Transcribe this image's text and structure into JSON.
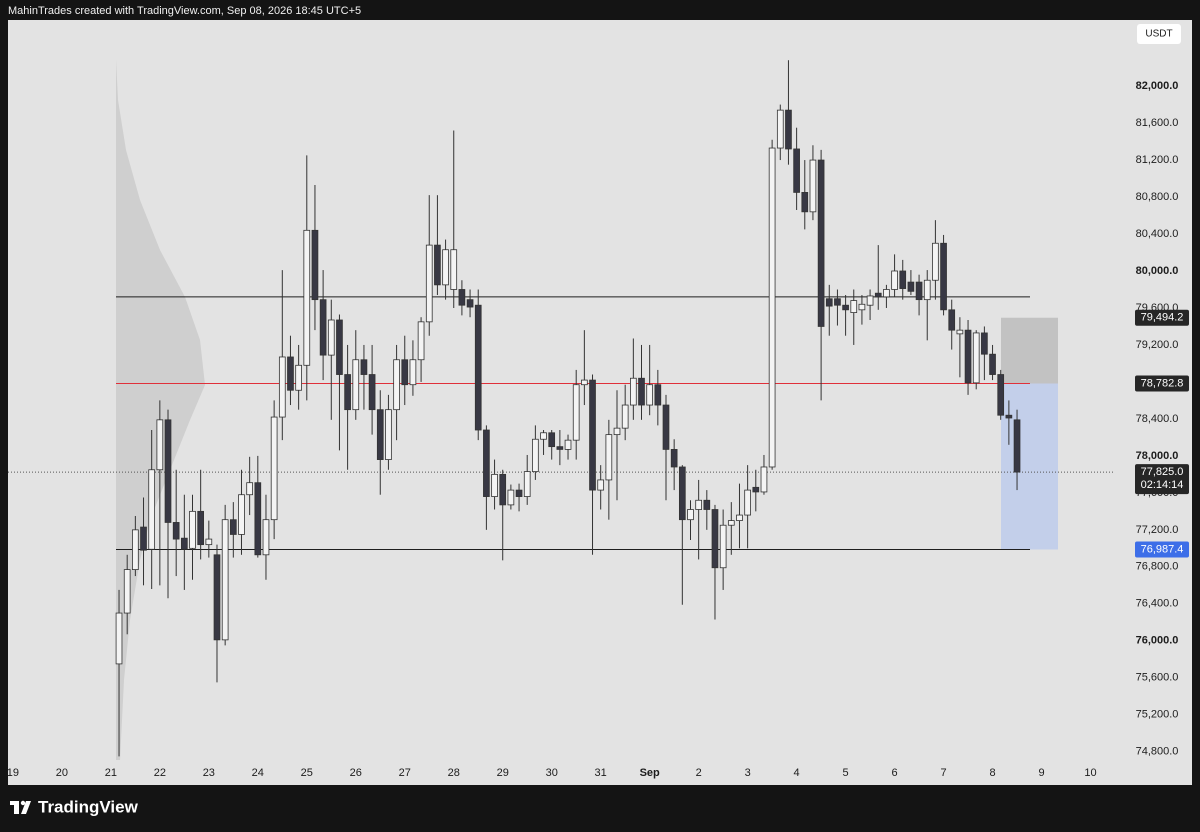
{
  "header": {
    "text": "MahinTrades created with TradingView.com, Sep 08, 2026 18:45 UTC+5"
  },
  "footer": {
    "brand": "TradingView"
  },
  "chart_data": {
    "type": "candlestick",
    "currency": "USDT",
    "up_color": "#f4f4f4",
    "down_color": "#383844",
    "wick_color": "#333333",
    "open": [
      75750,
      76300,
      76770,
      77230,
      76990,
      77850,
      78390,
      77280,
      77110,
      77000,
      77400,
      77040,
      76930,
      76010,
      77310,
      77150,
      77580,
      77710,
      76930,
      77310,
      78420,
      79070,
      78710,
      78980,
      80440,
      79690,
      79090,
      79470,
      78880,
      78500,
      79040,
      78880,
      78500,
      77960,
      78500,
      79040,
      78770,
      79040,
      79450,
      80280,
      79850,
      79800,
      79800,
      79690,
      79630,
      78280,
      77560,
      77800,
      77470,
      77630,
      77560,
      77830,
      78180,
      78250,
      78100,
      78070,
      78170,
      78770,
      78820,
      77630,
      77740,
      78230,
      78300,
      78550,
      78840,
      78550,
      78770,
      78550,
      78070,
      77880,
      77310,
      77420,
      77520,
      77420,
      76790,
      77250,
      77300,
      77360,
      77660,
      77610,
      77880,
      81330,
      81740,
      81320,
      80850,
      80640,
      81200,
      79700,
      79700,
      79630,
      79550,
      79580,
      79630,
      79760,
      79720,
      79800,
      80000,
      79880,
      79880,
      79690,
      79900,
      80300,
      79580,
      79320,
      79360,
      78790,
      79330,
      79100,
      78880,
      78440,
      78390
    ],
    "high": [
      76550,
      76930,
      77350,
      77550,
      78280,
      78600,
      78500,
      77850,
      77580,
      77580,
      77850,
      77300,
      77040,
      77470,
      77500,
      77850,
      77990,
      78000,
      77580,
      78600,
      80010,
      79300,
      79200,
      81250,
      80930,
      80010,
      79690,
      79530,
      79200,
      79360,
      79200,
      79200,
      78710,
      78660,
      79200,
      79300,
      79250,
      79500,
      80820,
      80820,
      80340,
      81520,
      79900,
      79800,
      79800,
      78330,
      77960,
      77850,
      77690,
      77700,
      78010,
      78330,
      78280,
      78280,
      78280,
      78230,
      78930,
      79360,
      78880,
      77900,
      78390,
      78710,
      78770,
      79270,
      79200,
      79200,
      78930,
      78660,
      78180,
      77900,
      77520,
      77740,
      77630,
      77470,
      77420,
      77500,
      77700,
      77900,
      77850,
      78010,
      81420,
      81800,
      82280,
      81550,
      81200,
      81360,
      81310,
      79850,
      79800,
      79740,
      79800,
      79740,
      79800,
      80280,
      79850,
      80180,
      80120,
      80010,
      79960,
      80010,
      80550,
      80390,
      79690,
      79500,
      79470,
      79360,
      79400,
      79200,
      78930,
      78600,
      78500
    ],
    "low": [
      74750,
      76070,
      76700,
      76600,
      76560,
      76600,
      76460,
      76700,
      76550,
      76660,
      76880,
      76900,
      75550,
      75950,
      76900,
      76930,
      77360,
      76900,
      76660,
      77100,
      78170,
      78550,
      78500,
      78600,
      79360,
      78820,
      78390,
      78060,
      77850,
      78390,
      78500,
      78230,
      77580,
      77850,
      78170,
      78550,
      78650,
      78800,
      79300,
      79740,
      79690,
      79600,
      79520,
      79500,
      78170,
      77200,
      77420,
      76870,
      77420,
      77400,
      77470,
      77740,
      78010,
      77960,
      77900,
      77960,
      77960,
      78550,
      76930,
      77420,
      77310,
      77520,
      78170,
      78390,
      78390,
      78440,
      78330,
      77520,
      77630,
      76390,
      77090,
      76880,
      77200,
      76230,
      76550,
      76930,
      77000,
      77000,
      77400,
      77580,
      77850,
      81200,
      81150,
      80660,
      80450,
      80550,
      78600,
      79300,
      79410,
      79300,
      79200,
      79420,
      79470,
      79580,
      79600,
      79720,
      79690,
      79740,
      79520,
      79250,
      79690,
      79520,
      79150,
      78850,
      78660,
      78720,
      78820,
      78820,
      78390,
      78120,
      77630
    ],
    "close": [
      76300,
      76770,
      77200,
      76980,
      77850,
      78390,
      77280,
      77100,
      76990,
      77400,
      77040,
      77100,
      76010,
      77310,
      77150,
      77580,
      77710,
      76930,
      77310,
      78420,
      79070,
      78710,
      78980,
      80440,
      79690,
      79090,
      79470,
      78880,
      78500,
      79040,
      78880,
      78500,
      77960,
      78500,
      79040,
      78770,
      79040,
      79450,
      80280,
      79850,
      80230,
      80230,
      79630,
      79610,
      78280,
      77560,
      77800,
      77470,
      77630,
      77560,
      77830,
      78180,
      78250,
      78100,
      78070,
      78170,
      78770,
      78820,
      77630,
      77740,
      78230,
      78300,
      78550,
      78840,
      78550,
      78770,
      78550,
      78070,
      77880,
      77310,
      77420,
      77520,
      77420,
      76790,
      77250,
      77300,
      77360,
      77630,
      77610,
      77880,
      81330,
      81740,
      81320,
      80850,
      80640,
      81200,
      79400,
      79620,
      79630,
      79580,
      79680,
      79640,
      79730,
      79720,
      79800,
      80000,
      79810,
      79780,
      79690,
      79900,
      80300,
      79580,
      79360,
      79360,
      78790,
      79330,
      79100,
      78880,
      78440,
      78410,
      77825
    ],
    "xlim": [
      -13.6,
      122
    ],
    "xticks": [
      {
        "value": -13,
        "label": "19"
      },
      {
        "value": -7,
        "label": "20"
      },
      {
        "value": -1,
        "label": "21"
      },
      {
        "value": 5,
        "label": "22"
      },
      {
        "value": 11,
        "label": "23"
      },
      {
        "value": 17,
        "label": "24"
      },
      {
        "value": 23,
        "label": "25"
      },
      {
        "value": 29,
        "label": "26"
      },
      {
        "value": 35,
        "label": "27"
      },
      {
        "value": 41,
        "label": "28"
      },
      {
        "value": 47,
        "label": "29"
      },
      {
        "value": 53,
        "label": "30"
      },
      {
        "value": 59,
        "label": "31"
      },
      {
        "value": 65,
        "label": "Sep"
      },
      {
        "value": 71,
        "label": "2"
      },
      {
        "value": 77,
        "label": "3"
      },
      {
        "value": 83,
        "label": "4"
      },
      {
        "value": 89,
        "label": "5"
      },
      {
        "value": 95,
        "label": "6"
      },
      {
        "value": 101,
        "label": "7"
      },
      {
        "value": 107,
        "label": "8"
      },
      {
        "value": 113,
        "label": "9"
      },
      {
        "value": 119,
        "label": "10"
      }
    ],
    "ylim": [
      74440,
      82715
    ],
    "yticks": [
      {
        "value": 74800,
        "label": "74,800.0"
      },
      {
        "value": 75200,
        "label": "75,200.0"
      },
      {
        "value": 75600,
        "label": "75,600.0"
      },
      {
        "value": 76000,
        "label": "76,000.0"
      },
      {
        "value": 76400,
        "label": "76,400.0"
      },
      {
        "value": 76800,
        "label": "76,800.0"
      },
      {
        "value": 77200,
        "label": "77,200.0"
      },
      {
        "value": 77600,
        "label": "77,600.0"
      },
      {
        "value": 78000,
        "label": "78,000.0"
      },
      {
        "value": 78400,
        "label": "78,400.0"
      },
      {
        "value": 78800,
        "label": "78,800.0"
      },
      {
        "value": 79200,
        "label": "79,200.0"
      },
      {
        "value": 79600,
        "label": "79,600.0"
      },
      {
        "value": 80000,
        "label": "80,000.0"
      },
      {
        "value": 80400,
        "label": "80,400.0"
      },
      {
        "value": 80800,
        "label": "80,800.0"
      },
      {
        "value": 81200,
        "label": "81,200.0"
      },
      {
        "value": 81600,
        "label": "81,600.0"
      },
      {
        "value": 82000,
        "label": "82,000.0"
      }
    ],
    "levels": [
      {
        "value": 79720,
        "color": "#1e1e1e"
      }
    ],
    "price_tags": [
      {
        "value": 79494.2,
        "label": "79,494.2",
        "color": "#262626"
      },
      {
        "value": 78782.8,
        "label": "78,782.8",
        "color": "#262626",
        "line_color": "#e0303a"
      },
      {
        "value": 76987.4,
        "label": "76,987.4",
        "color": "#3d6ee8",
        "line_color": "#1e1e1e"
      }
    ],
    "last_price": {
      "value": 77825.0,
      "label": "77,825.0",
      "countdown": "02:14:14"
    }
  }
}
